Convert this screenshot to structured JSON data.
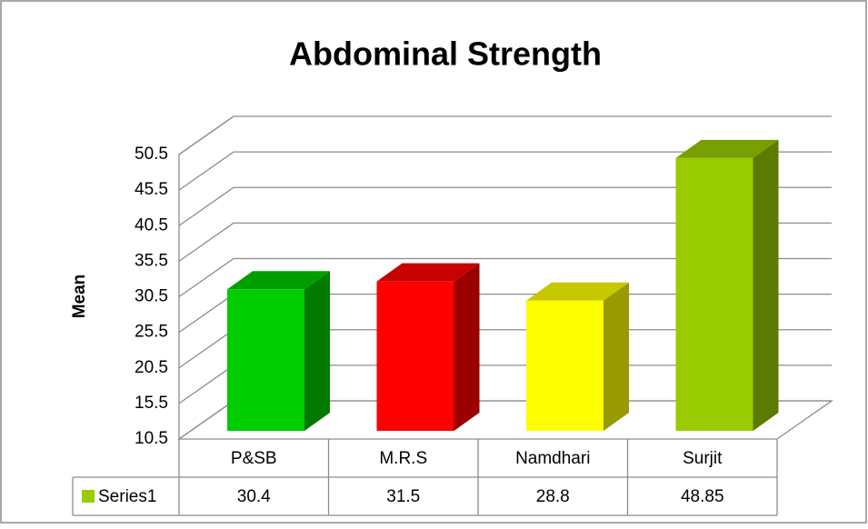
{
  "chart_data": {
    "type": "bar3d",
    "title": "Abdominal Strength",
    "y_label": "Mean",
    "categories": [
      "P&SB",
      "M.R.S",
      "Namdhari",
      "Surjit"
    ],
    "series": [
      {
        "name": "Series1",
        "color": "#99cc00",
        "values": [
          30.4,
          31.5,
          28.8,
          48.85
        ]
      }
    ],
    "point_colors": [
      "#00cc00",
      "#ff0000",
      "#ffff00",
      "#99cc00"
    ],
    "ylim": [
      10.5,
      50.5
    ],
    "yticks": [
      10.5,
      15.5,
      20.5,
      25.5,
      30.5,
      35.5,
      40.5,
      45.5,
      50.5
    ],
    "grid": true,
    "data_table": true
  }
}
